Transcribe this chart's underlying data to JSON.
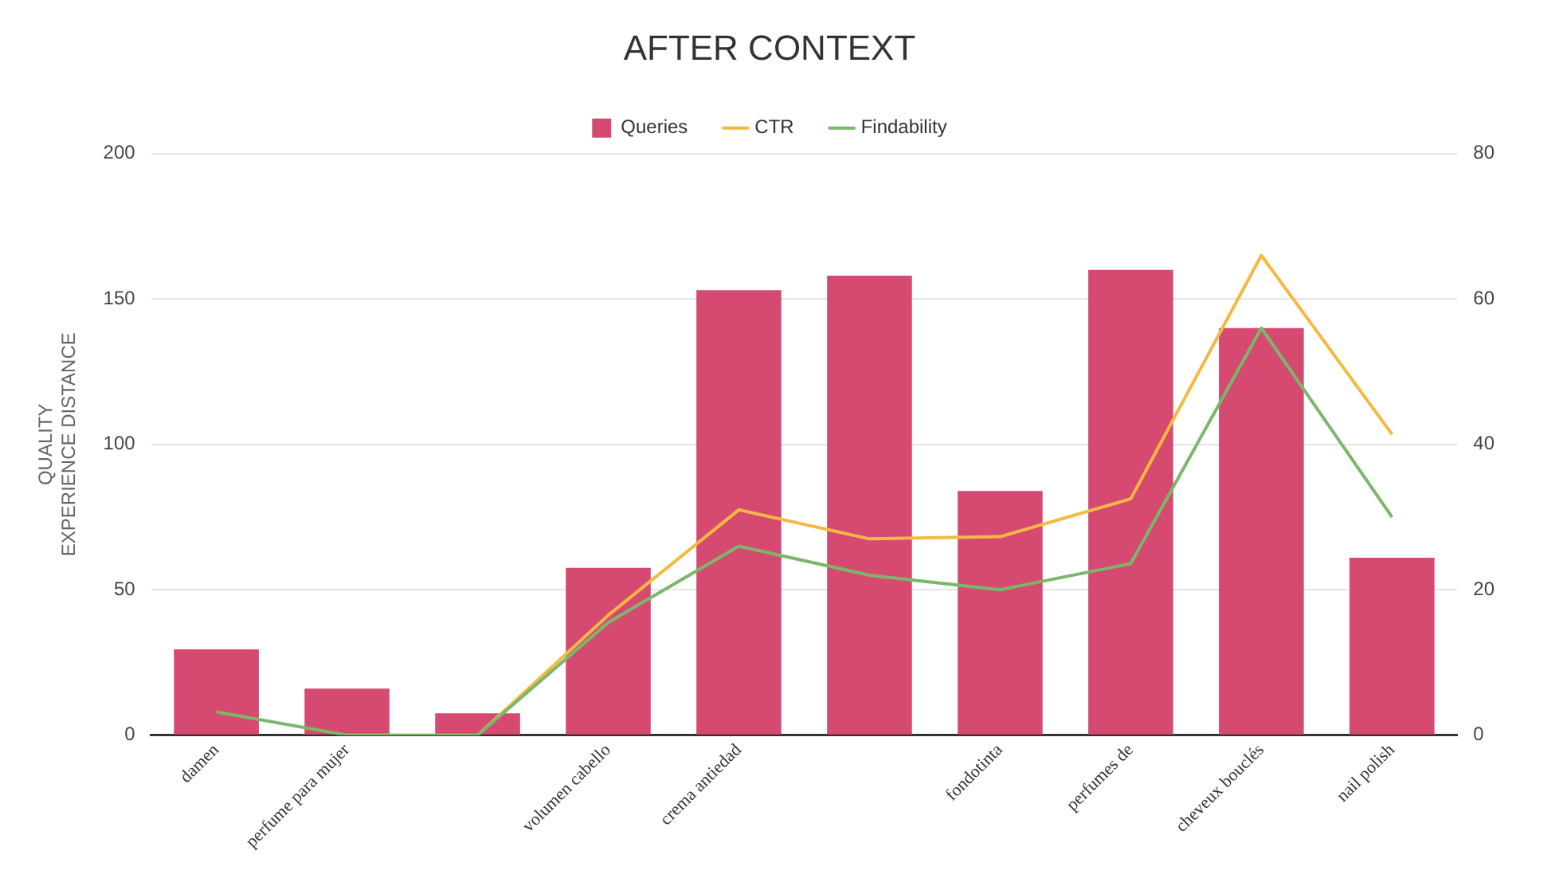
{
  "chart_data": {
    "type": "bar",
    "title": "AFTER CONTEXT",
    "ylabel": "QUALITY\nEXPERIENCE DISTANCE",
    "categories": [
      "damen",
      "perfume para mujer",
      null,
      "volumen cabello",
      "crema antiedad",
      null,
      "fondotinta",
      "perfumes de",
      "cheveux bouclés",
      "nail polish"
    ],
    "series": [
      {
        "name": "Queries",
        "color": "#d64a71",
        "values": [
          29.5,
          16,
          7.5,
          57.5,
          153,
          158,
          84,
          160,
          140,
          61
        ]
      },
      {
        "name": "CTR",
        "type": "line",
        "axis": "y2",
        "color": "#f5b942",
        "values": [
          null,
          0,
          0,
          16.5,
          31,
          27,
          27.3,
          32.5,
          66,
          41.4
        ]
      },
      {
        "name": "Findability",
        "type": "line",
        "axis": "y2",
        "color": "#79b86a",
        "values": [
          3.2,
          0,
          0,
          15.5,
          26,
          22,
          20,
          23.6,
          56,
          30
        ]
      }
    ],
    "ylim": [
      0,
      200
    ],
    "yticks": [
      0,
      50,
      100,
      150,
      200
    ],
    "y2lim": [
      0,
      80
    ],
    "y2ticks": [
      0,
      20,
      40,
      60,
      80
    ],
    "grid": "y",
    "legend": "top",
    "marker": "none",
    "line_style": "solid"
  }
}
